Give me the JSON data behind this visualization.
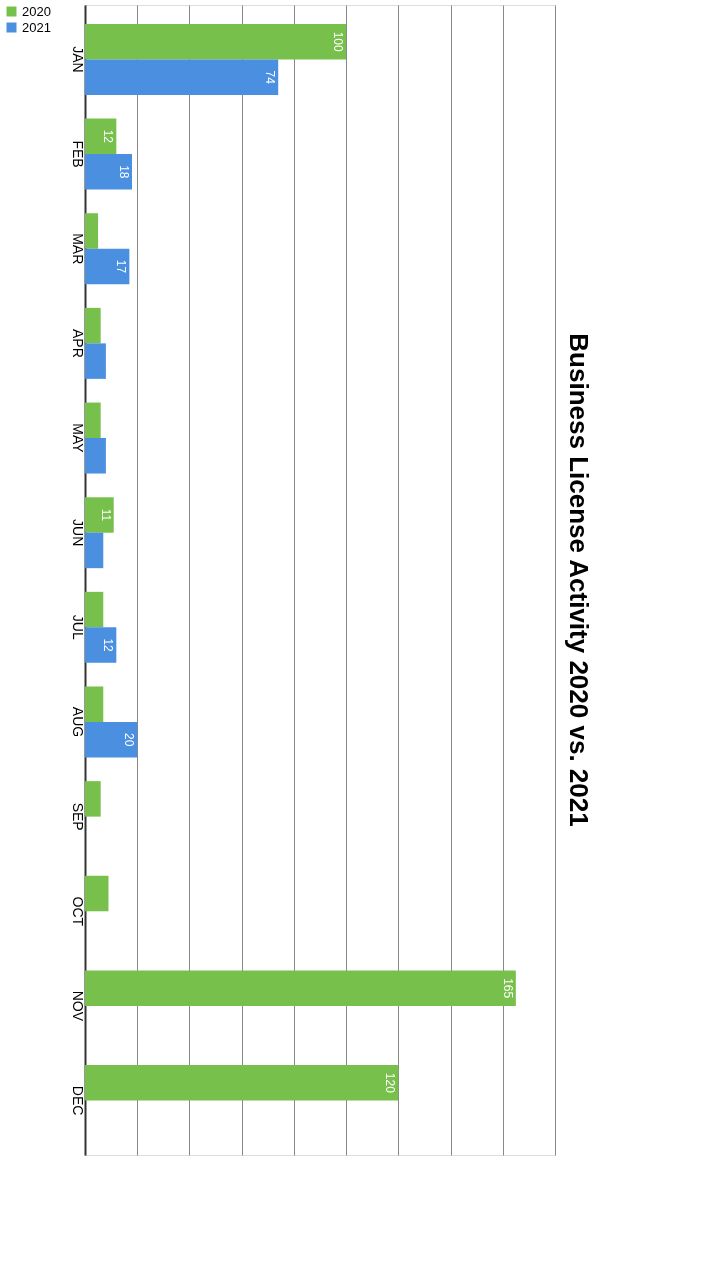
{
  "chart_data": {
    "type": "bar",
    "orientation": "horizontal",
    "title": "Business License Activity 2020 vs. 2021",
    "categories": [
      "JAN",
      "FEB",
      "MAR",
      "APR",
      "MAY",
      "JUN",
      "JUL",
      "AUG",
      "SEP",
      "OCT",
      "NOV",
      "DEC"
    ],
    "series": [
      {
        "name": "2020",
        "color": "#78c04c",
        "values": [
          100,
          12,
          5,
          6,
          6,
          11,
          7,
          7,
          6,
          9,
          165,
          120
        ],
        "value_labels": [
          "100",
          "12",
          null,
          null,
          null,
          "11",
          null,
          null,
          null,
          null,
          "165",
          "120"
        ]
      },
      {
        "name": "2021",
        "color": "#4a8fe0",
        "values": [
          74,
          18,
          17,
          8,
          8,
          7,
          12,
          20,
          null,
          null,
          null,
          null
        ],
        "value_labels": [
          "74",
          "18",
          "17",
          null,
          null,
          null,
          "12",
          "20",
          null,
          null,
          null,
          null
        ]
      }
    ],
    "xlim": [
      0,
      180
    ],
    "xticks": [
      {
        "value": 0,
        "label": null
      },
      {
        "value": 20,
        "label": null
      },
      {
        "value": 40,
        "label": null
      },
      {
        "value": 60,
        "label": null
      },
      {
        "value": 80,
        "label": null
      },
      {
        "value": 100,
        "label": null
      },
      {
        "value": 120,
        "label": null
      },
      {
        "value": 140,
        "label": null
      },
      {
        "value": 160,
        "label": null
      },
      {
        "value": 180,
        "label": null
      }
    ],
    "grid": "x",
    "legend": "left"
  }
}
